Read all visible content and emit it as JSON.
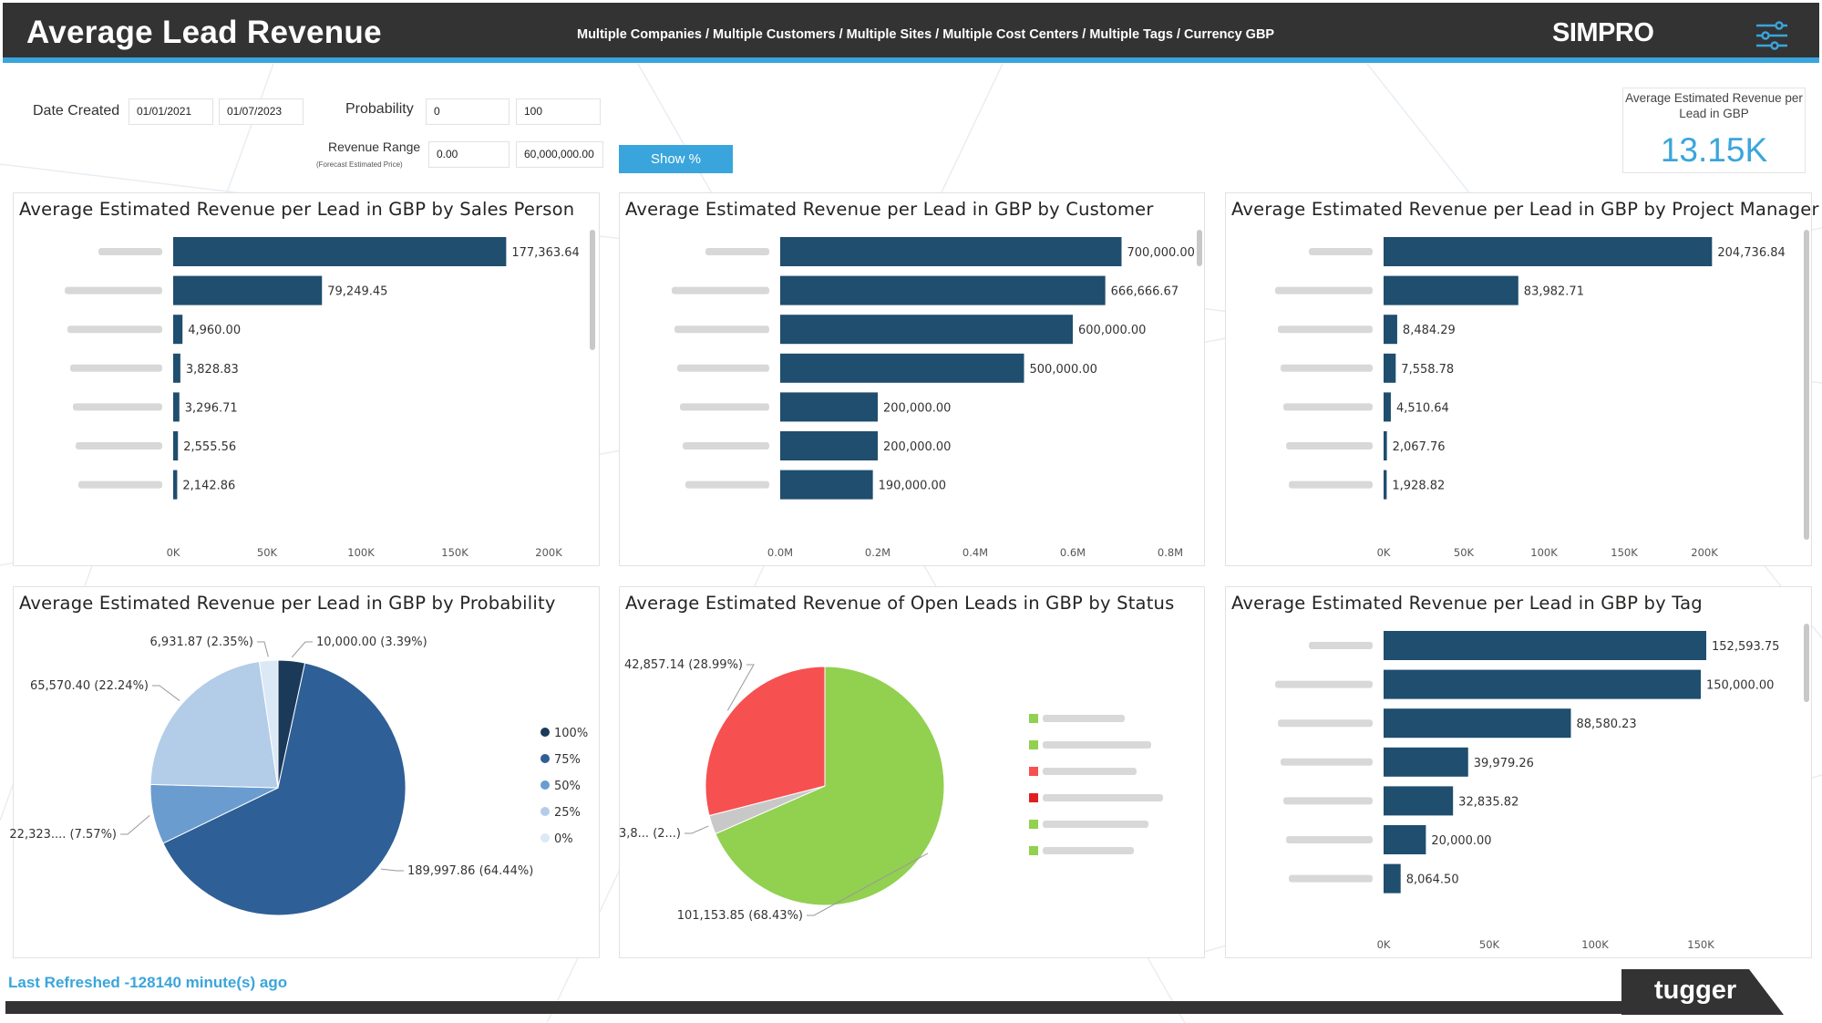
{
  "header": {
    "title": "Average Lead Revenue",
    "filters": "Multiple Companies / Multiple Customers / Multiple Sites / Multiple Cost Centers / Multiple Tags / Currency GBP",
    "logo": "SIMPRO",
    "menu_icon": "sliders-icon",
    "bar_color": "#333333",
    "accent": "#3aa5dc"
  },
  "slicers": {
    "date_created_label": "Date Created",
    "date_from": "01/01/2021",
    "date_to": "01/07/2023",
    "probability_label": "Probability",
    "probability_min": "0",
    "probability_max": "100",
    "revenue_range_label": "Revenue Range",
    "revenue_range_sublabel": "(Forecast Estimated Price)",
    "revenue_min": "0.00",
    "revenue_max": "60,000,000.00",
    "show_pct_label": "Show %"
  },
  "kpi": {
    "label": "Average Estimated Revenue per Lead in GBP",
    "value": "13.15K"
  },
  "chart_data": [
    {
      "type": "bar",
      "title": "Average Estimated Revenue per Lead in GBP by Sales Person",
      "orientation": "horizontal",
      "values": [
        177363.64,
        79249.45,
        4960.0,
        3828.83,
        3296.71,
        2555.56,
        2142.86
      ],
      "labels": [
        "177,363.64",
        "79,249.45",
        "4,960.00",
        "3,828.83",
        "3,296.71",
        "2,555.56",
        "2,142.86"
      ],
      "ticks": [
        "0K",
        "50K",
        "100K",
        "150K",
        "200K"
      ],
      "xlim": [
        0,
        200000
      ],
      "category_labels_blurred": true,
      "bar_color": "#1f4e6e"
    },
    {
      "type": "bar",
      "title": "Average Estimated Revenue per Lead in GBP by Customer",
      "orientation": "horizontal",
      "values": [
        700000.0,
        666666.67,
        600000.0,
        500000.0,
        200000.0,
        200000.0,
        190000.0
      ],
      "labels": [
        "700,000.00",
        "666,666.67",
        "600,000.00",
        "500,000.00",
        "200,000.00",
        "200,000.00",
        "190,000.00"
      ],
      "ticks": [
        "0.0M",
        "0.2M",
        "0.4M",
        "0.6M",
        "0.8M"
      ],
      "xlim": [
        0,
        800000
      ],
      "category_labels_blurred": true,
      "bar_color": "#1f4e6e"
    },
    {
      "type": "bar",
      "title": "Average Estimated Revenue per Lead in GBP by Project Manager",
      "orientation": "horizontal",
      "values": [
        204736.84,
        83982.71,
        8484.29,
        7558.78,
        4510.64,
        2067.76,
        1928.82
      ],
      "labels": [
        "204,736.84",
        "83,982.71",
        "8,484.29",
        "7,558.78",
        "4,510.64",
        "2,067.76",
        "1,928.82"
      ],
      "ticks": [
        "0K",
        "50K",
        "100K",
        "150K",
        "200K"
      ],
      "xlim": [
        0,
        200000
      ],
      "category_labels_blurred": true,
      "bar_color": "#1f4e6e"
    },
    {
      "type": "pie",
      "title": "Average Estimated Revenue per Lead in GBP by Probability",
      "series": [
        {
          "name": "100%",
          "value": 10000.0,
          "label": "10,000.00 (3.39%)",
          "color": "#1b3a5a"
        },
        {
          "name": "75%",
          "value": 189997.86,
          "label": "189,997.86 (64.44%)",
          "color": "#2e5f96"
        },
        {
          "name": "50%",
          "value": 22323,
          "label": "22,323.... (7.57%)",
          "color": "#6a9cd0"
        },
        {
          "name": "25%",
          "value": 65570.4,
          "label": "65,570.40 (22.24%)",
          "color": "#b3cde8"
        },
        {
          "name": "0%",
          "value": 6931.87,
          "label": "6,931.87 (2.35%)",
          "color": "#dbe8f6"
        }
      ],
      "legend": "right"
    },
    {
      "type": "pie",
      "title": "Average Estimated Revenue of Open Leads in GBP by Status",
      "series": [
        {
          "value": 101153.85,
          "label": "101,153.85 (68.43%)",
          "color": "#92d050"
        },
        {
          "value": 3800,
          "label": "3,8... (2...)",
          "color": "#c8c8c8"
        },
        {
          "value": 42857.14,
          "label": "42,857.14 (28.99%)",
          "color": "#f75050"
        }
      ],
      "legend": "right",
      "legend_colors": [
        "#92d050",
        "#92d050",
        "#f75050",
        "#e02020",
        "#92d050",
        "#92d050"
      ],
      "legend_labels_blurred": true
    },
    {
      "type": "bar",
      "title": "Average Estimated Revenue per Lead in GBP by Tag",
      "orientation": "horizontal",
      "values": [
        152593.75,
        150000.0,
        88580.23,
        39979.26,
        32835.82,
        20000.0,
        8064.5
      ],
      "labels": [
        "152,593.75",
        "150,000.00",
        "88,580.23",
        "39,979.26",
        "32,835.82",
        "20,000.00",
        "8,064.50"
      ],
      "ticks": [
        "0K",
        "50K",
        "100K",
        "150K"
      ],
      "xlim": [
        0,
        150000
      ],
      "category_labels_blurred": true,
      "bar_color": "#1f4e6e"
    }
  ],
  "footer": {
    "last_refreshed": "Last Refreshed -128140 minute(s) ago",
    "brand": "tugger"
  }
}
